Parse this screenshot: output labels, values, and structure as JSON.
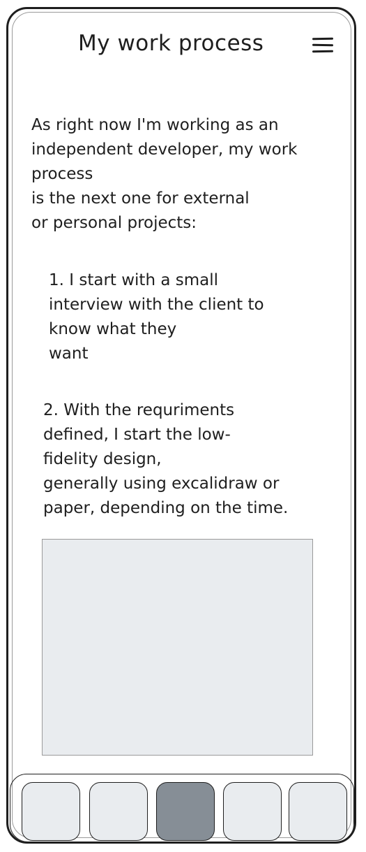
{
  "header": {
    "title": "My work process",
    "menu_icon": "hamburger-menu-icon"
  },
  "content": {
    "intro": "As right now I'm working as an\nindependent developer, my work\nprocess\nis the next one for external\nor personal projects:",
    "step1": "1. I start with a small\ninterview with the client to\nknow what they\nwant",
    "step2": "2. With the requriments\ndefined, I start the low-\nfidelity design,\ngenerally using excalidraw or\npaper, depending on the time."
  },
  "colors": {
    "stroke": "#1e1e1e",
    "placeholder_fill": "#e9ecef",
    "active_nav_fill": "#868e96"
  },
  "bottom_nav": {
    "items": [
      {
        "icon": "nav-placeholder",
        "active": false
      },
      {
        "icon": "nav-placeholder",
        "active": false
      },
      {
        "icon": "nav-placeholder",
        "active": true
      },
      {
        "icon": "nav-placeholder",
        "active": false
      },
      {
        "icon": "nav-placeholder",
        "active": false
      }
    ]
  }
}
